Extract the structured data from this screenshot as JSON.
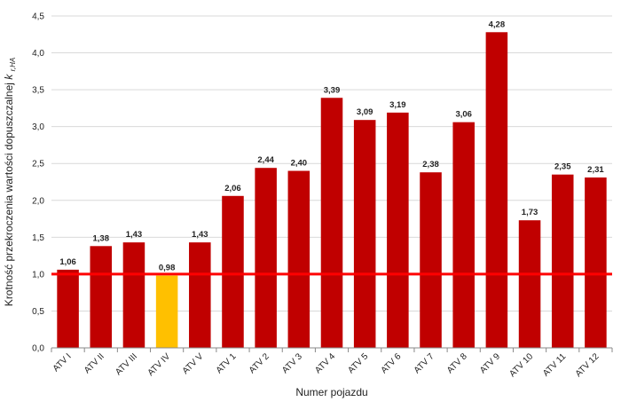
{
  "chart_data": {
    "type": "bar",
    "title": "",
    "xlabel": "Numer pojazdu",
    "ylabel": "Krotność przekroczenia wartości dopuszczalnej",
    "ylabel_symbol": "k",
    "ylabel_subscript": "r,HA",
    "ylim": [
      0,
      4.5
    ],
    "yticks": [
      "0,0",
      "0,5",
      "1,0",
      "1,5",
      "2,0",
      "2,5",
      "3,0",
      "3,5",
      "4,0",
      "4,5"
    ],
    "ytick_values": [
      0,
      0.5,
      1.0,
      1.5,
      2.0,
      2.5,
      3.0,
      3.5,
      4.0,
      4.5
    ],
    "grid": true,
    "categories": [
      "ATV I",
      "ATV II",
      "ATV III",
      "ATV IV",
      "ATV V",
      "ATV 1",
      "ATV 2",
      "ATV 3",
      "ATV 4",
      "ATV 5",
      "ATV 6",
      "ATV 7",
      "ATV 8",
      "ATV 9",
      "ATV 10",
      "ATV 11",
      "ATV 12"
    ],
    "values": [
      1.06,
      1.38,
      1.43,
      0.98,
      1.43,
      2.06,
      2.44,
      2.4,
      3.39,
      3.09,
      3.19,
      2.38,
      3.06,
      4.28,
      1.73,
      2.35,
      2.31
    ],
    "value_labels": [
      "1,06",
      "1,38",
      "1,43",
      "0,98",
      "1,43",
      "2,06",
      "2,44",
      "2,40",
      "3,39",
      "3,09",
      "3,19",
      "2,38",
      "3,06",
      "4,28",
      "1,73",
      "2,35",
      "2,31"
    ],
    "reference_line": 1.0,
    "colors": {
      "bar": "#c00000",
      "bar_below_limit": "#ffc000",
      "reference_line": "#ff0000",
      "grid": "#d9d9d9",
      "axis": "#888888"
    }
  }
}
